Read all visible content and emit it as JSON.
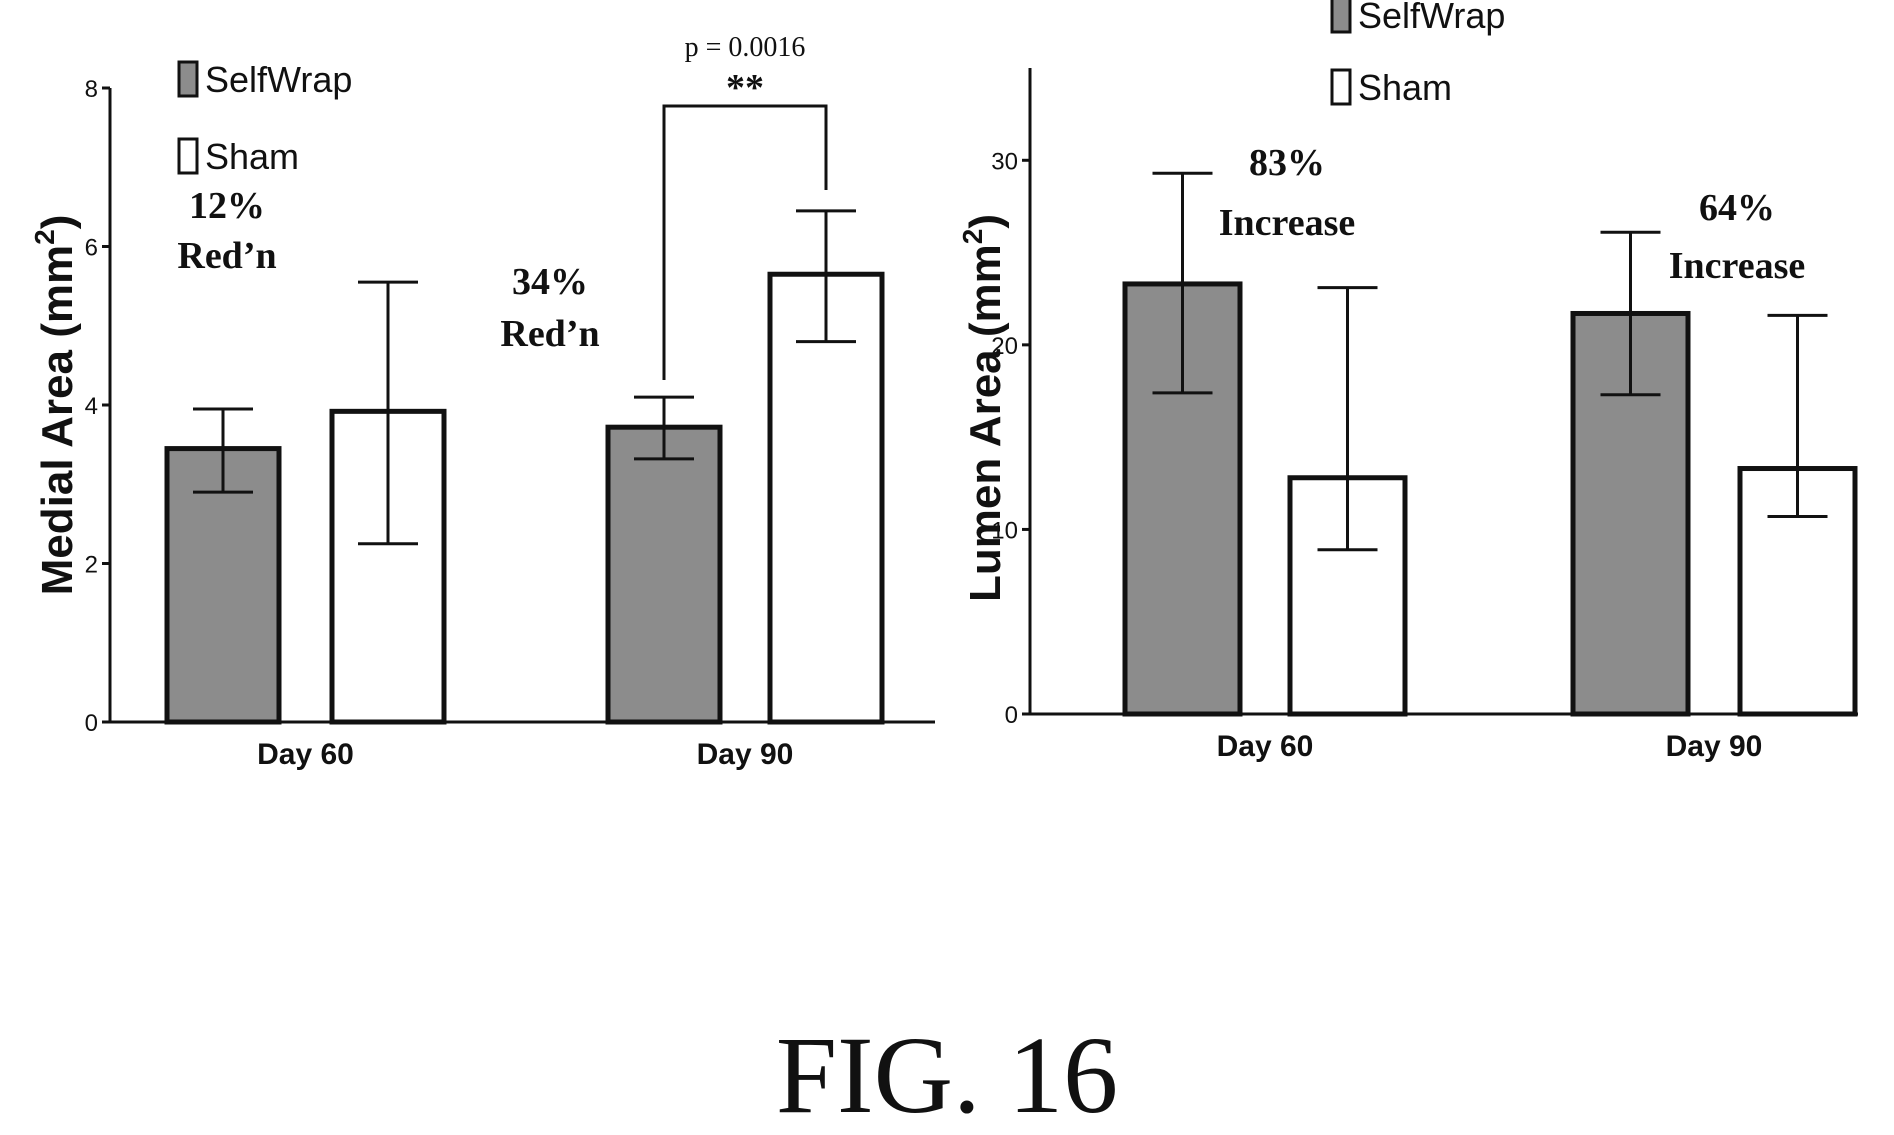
{
  "figure_label": "FIG. 16",
  "colors": {
    "selfwrap": "#8c8c8c",
    "sham": "#ffffff",
    "stroke": "#111111"
  },
  "chart_data": [
    {
      "type": "bar",
      "ylabel": "Medial Area (mm²)",
      "ylabel_main": "Medial Area (mm",
      "ylabel_sup": "2",
      "ylabel_tail": ")",
      "ylim": [
        0,
        8
      ],
      "yticks": [
        "0",
        "2",
        "4",
        "6",
        "8"
      ],
      "categories": [
        "Day 60",
        "Day 90"
      ],
      "legend": [
        "SelfWrap",
        "Sham"
      ],
      "legend_position": "top-left",
      "series": [
        {
          "name": "SelfWrap",
          "values": [
            3.45,
            3.72
          ],
          "err_low": [
            2.9,
            3.32
          ],
          "err_high": [
            3.95,
            4.1
          ]
        },
        {
          "name": "Sham",
          "values": [
            3.92,
            5.65
          ],
          "err_low": [
            2.25,
            4.8
          ],
          "err_high": [
            5.55,
            6.45
          ]
        }
      ],
      "annotations": [
        {
          "lines": [
            "12%",
            "Red’n"
          ],
          "category": 0
        },
        {
          "lines": [
            "34%",
            "Red’n"
          ],
          "category": 1
        }
      ],
      "significance": {
        "category": 1,
        "p_text": "p = 0.0016",
        "stars": "**"
      }
    },
    {
      "type": "bar",
      "ylabel": "Lumen Area (mm²)",
      "ylabel_main": "Lumen Area (mm",
      "ylabel_sup": "2",
      "ylabel_tail": ")",
      "ylim": [
        0,
        35
      ],
      "yticks": [
        "0",
        "10",
        "20",
        "30"
      ],
      "categories": [
        "Day 60",
        "Day 90"
      ],
      "legend": [
        "SelfWrap",
        "Sham"
      ],
      "legend_position": "top-center",
      "series": [
        {
          "name": "SelfWrap",
          "values": [
            23.3,
            21.7
          ],
          "err_low": [
            17.4,
            17.3
          ],
          "err_high": [
            29.3,
            26.1
          ]
        },
        {
          "name": "Sham",
          "values": [
            12.8,
            13.3
          ],
          "err_low": [
            8.9,
            10.7
          ],
          "err_high": [
            23.1,
            21.6
          ]
        }
      ],
      "annotations": [
        {
          "lines": [
            "83%",
            "Increase"
          ],
          "category": 0
        },
        {
          "lines": [
            "64%",
            "Increase"
          ],
          "category": 1
        }
      ]
    }
  ]
}
